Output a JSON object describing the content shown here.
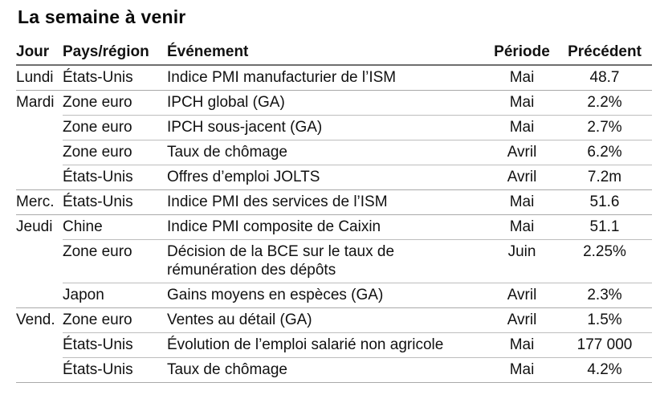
{
  "title": "La semaine à venir",
  "table": {
    "headers": {
      "jour": "Jour",
      "pays": "Pays/région",
      "evenement": "Événement",
      "periode": "Période",
      "precedent": "Précédent"
    },
    "rows": [
      {
        "jour": "Lundi",
        "pays": "États-Unis",
        "evenement": "Indice PMI manufacturier de l’ISM",
        "periode": "Mai",
        "precedent": "48.7"
      },
      {
        "jour": "Mardi",
        "pays": "Zone euro",
        "evenement": "IPCH global (GA)",
        "periode": "Mai",
        "precedent": "2.2%"
      },
      {
        "jour": "",
        "pays": "Zone euro",
        "evenement": "IPCH sous-jacent (GA)",
        "periode": "Mai",
        "precedent": "2.7%"
      },
      {
        "jour": "",
        "pays": "Zone euro",
        "evenement": "Taux de chômage",
        "periode": "Avril",
        "precedent": "6.2%"
      },
      {
        "jour": "",
        "pays": "États-Unis",
        "evenement": "Offres d’emploi JOLTS",
        "periode": "Avril",
        "precedent": "7.2m"
      },
      {
        "jour": "Merc.",
        "pays": "États-Unis",
        "evenement": "Indice PMI des services de l’ISM",
        "periode": "Mai",
        "precedent": "51.6"
      },
      {
        "jour": "Jeudi",
        "pays": "Chine",
        "evenement": "Indice PMI composite de Caixin",
        "periode": "Mai",
        "precedent": "51.1"
      },
      {
        "jour": "",
        "pays": "Zone euro",
        "evenement": "Décision de la BCE sur le taux de rémunération des dépôts",
        "periode": "Juin",
        "precedent": "2.25%"
      },
      {
        "jour": "",
        "pays": "Japon",
        "evenement": "Gains moyens en espèces (GA)",
        "periode": "Avril",
        "precedent": "2.3%"
      },
      {
        "jour": "Vend.",
        "pays": "Zone euro",
        "evenement": "Ventes au détail (GA)",
        "periode": "Avril",
        "precedent": "1.5%"
      },
      {
        "jour": "",
        "pays": "États-Unis",
        "evenement": "Évolution de l’emploi salarié non agricole",
        "periode": "Mai",
        "precedent": "177 000"
      },
      {
        "jour": "",
        "pays": "États-Unis",
        "evenement": "Taux de chômage",
        "periode": "Mai",
        "precedent": "4.2%"
      }
    ]
  }
}
